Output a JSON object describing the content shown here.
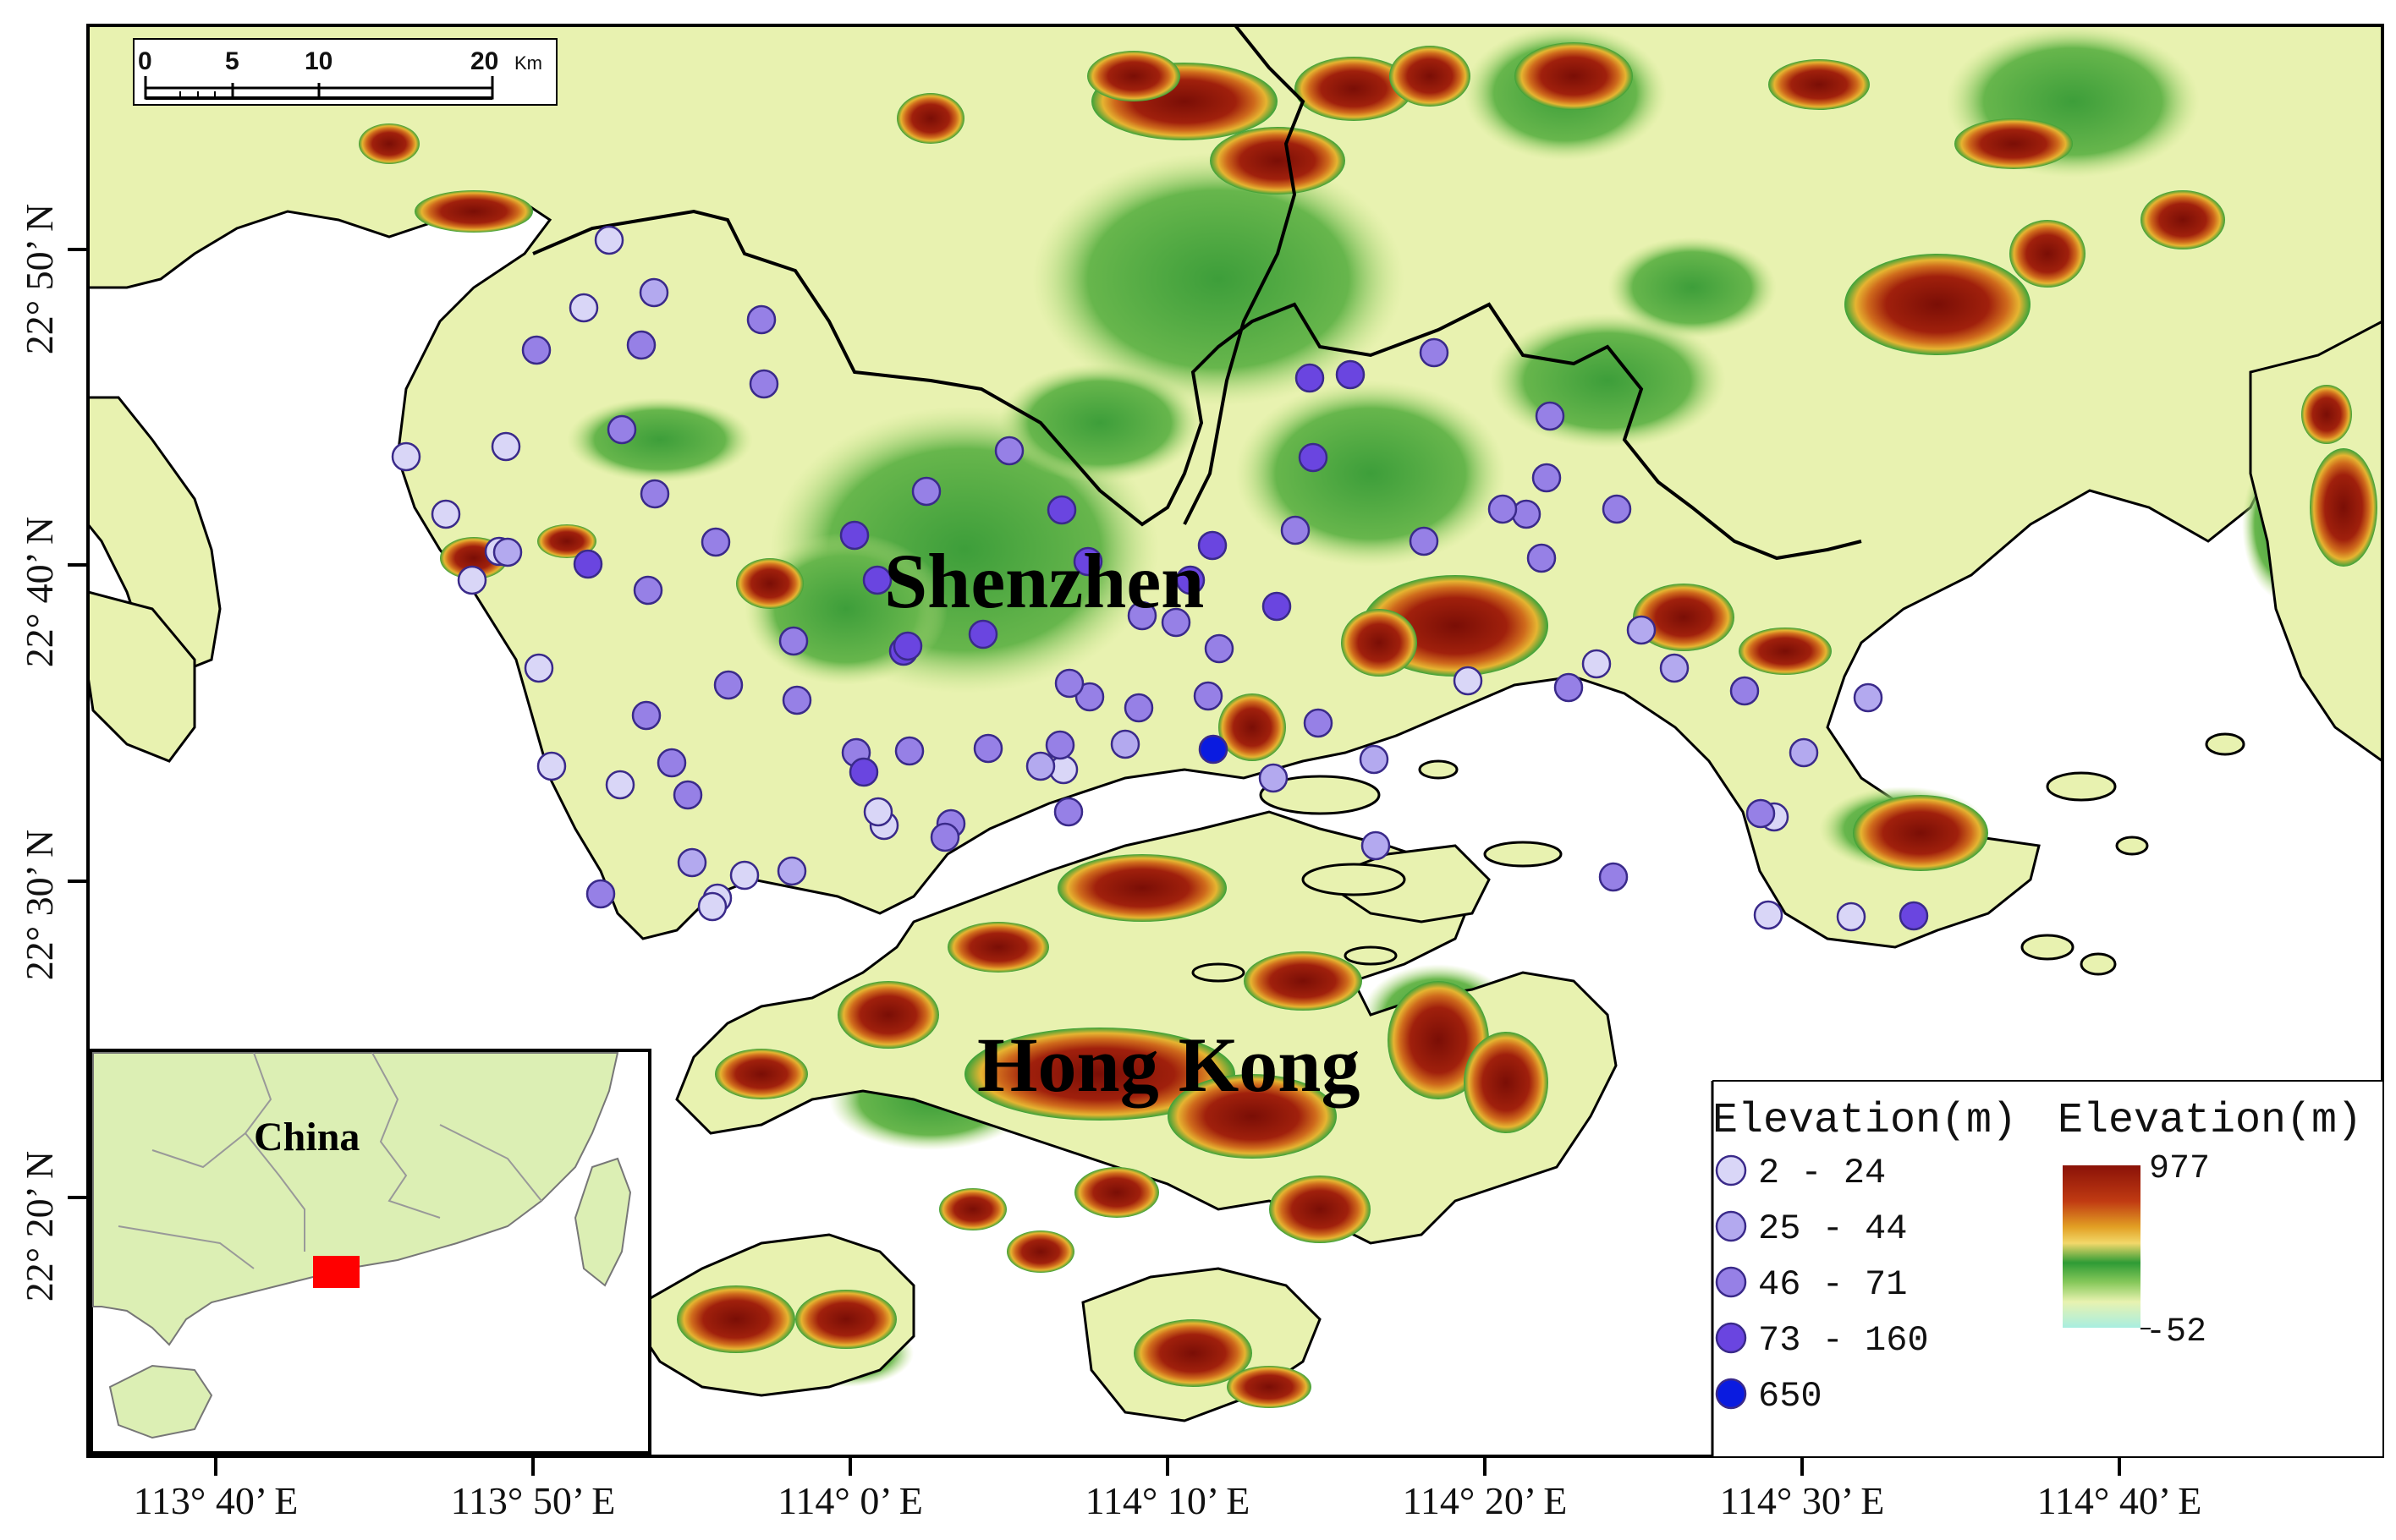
{
  "place_labels": {
    "main_city": "Shenzhen",
    "second_city": "Hong Kong",
    "inset_country": "China"
  },
  "scale_bar": {
    "ticks": [
      "0",
      "5",
      "10",
      "20"
    ],
    "unit": "Km"
  },
  "lon_labels": [
    "113° 40’ E",
    "113° 50’ E",
    "114° 0’ E",
    "114° 10’ E",
    "114° 20’ E",
    "114° 30’ E",
    "114° 40’ E"
  ],
  "lat_labels": [
    "22° 50’ N",
    "22° 40’ N",
    "22° 30’ N",
    "22° 20’ N"
  ],
  "station_legend": {
    "title": "Elevation(m)",
    "classes": [
      {
        "label": "2 - 24",
        "color": "#d9d6f7"
      },
      {
        "label": "25 - 44",
        "color": "#b3a9ef"
      },
      {
        "label": "46 - 71",
        "color": "#9680e6"
      },
      {
        "label": "73 - 160",
        "color": "#6a45e0"
      },
      {
        "label": "650",
        "color": "#0a1be0"
      }
    ]
  },
  "dem_legend": {
    "title": "Elevation(m)",
    "max": "977",
    "min": "-52"
  },
  "colors": {
    "lowland": "#e8f2b0",
    "green": "#2e9b35",
    "high": "#8a1208",
    "sea": "#ffffff",
    "inset_land": "#dcefb4",
    "study_area": "#ff0000"
  },
  "stations": [
    [
      1,
      720,
      284
    ],
    [
      1,
      690,
      364
    ],
    [
      1,
      480,
      540
    ],
    [
      1,
      598,
      528
    ],
    [
      1,
      527,
      608
    ],
    [
      1,
      590,
      652
    ],
    [
      1,
      558,
      686
    ],
    [
      1,
      637,
      790
    ],
    [
      1,
      652,
      906
    ],
    [
      1,
      733,
      928
    ],
    [
      1,
      848,
      1062
    ],
    [
      1,
      842,
      1072
    ],
    [
      1,
      880,
      1035
    ],
    [
      1,
      1045,
      976
    ],
    [
      1,
      1257,
      910
    ],
    [
      1,
      1887,
      785
    ],
    [
      1,
      2097,
      966
    ],
    [
      1,
      2090,
      1082
    ],
    [
      1,
      2188,
      1084
    ],
    [
      1,
      1735,
      805
    ],
    [
      1,
      1038,
      960
    ],
    [
      2,
      773,
      346
    ],
    [
      2,
      600,
      653
    ],
    [
      2,
      818,
      1020
    ],
    [
      2,
      936,
      1030
    ],
    [
      2,
      1230,
      906
    ],
    [
      2,
      1330,
      880
    ],
    [
      2,
      1505,
      920
    ],
    [
      2,
      1624,
      898
    ],
    [
      2,
      2132,
      890
    ],
    [
      2,
      2208,
      825
    ],
    [
      2,
      1979,
      790
    ],
    [
      2,
      1940,
      745
    ],
    [
      2,
      1626,
      1000
    ],
    [
      3,
      634,
      414
    ],
    [
      3,
      758,
      408
    ],
    [
      3,
      900,
      378
    ],
    [
      3,
      735,
      508
    ],
    [
      3,
      903,
      454
    ],
    [
      3,
      774,
      584
    ],
    [
      3,
      1095,
      581
    ],
    [
      3,
      1193,
      533
    ],
    [
      3,
      846,
      641
    ],
    [
      3,
      766,
      698
    ],
    [
      3,
      938,
      758
    ],
    [
      3,
      861,
      810
    ],
    [
      3,
      764,
      846
    ],
    [
      3,
      794,
      902
    ],
    [
      3,
      813,
      940
    ],
    [
      3,
      710,
      1057
    ],
    [
      3,
      942,
      828
    ],
    [
      3,
      1012,
      890
    ],
    [
      3,
      1075,
      888
    ],
    [
      3,
      1168,
      885
    ],
    [
      3,
      1253,
      881
    ],
    [
      3,
      1346,
      837
    ],
    [
      3,
      1288,
      824
    ],
    [
      3,
      1264,
      808
    ],
    [
      3,
      1390,
      736
    ],
    [
      3,
      1441,
      767
    ],
    [
      3,
      1428,
      823
    ],
    [
      3,
      1558,
      855
    ],
    [
      3,
      1531,
      627
    ],
    [
      3,
      1683,
      640
    ],
    [
      3,
      1804,
      608
    ],
    [
      3,
      1822,
      660
    ],
    [
      3,
      1776,
      602
    ],
    [
      3,
      1828,
      565
    ],
    [
      3,
      1695,
      417
    ],
    [
      3,
      1832,
      492
    ],
    [
      3,
      1911,
      602
    ],
    [
      3,
      1854,
      813
    ],
    [
      3,
      2062,
      817
    ],
    [
      3,
      1907,
      1037
    ],
    [
      3,
      2081,
      962
    ],
    [
      3,
      1350,
      728
    ],
    [
      3,
      1263,
      960
    ],
    [
      3,
      1124,
      974
    ],
    [
      3,
      1117,
      990
    ],
    [
      4,
      695,
      667
    ],
    [
      4,
      1010,
      633
    ],
    [
      4,
      1037,
      686
    ],
    [
      4,
      1068,
      770
    ],
    [
      4,
      1162,
      750
    ],
    [
      4,
      1255,
      603
    ],
    [
      4,
      1286,
      664
    ],
    [
      4,
      1433,
      645
    ],
    [
      4,
      1407,
      686
    ],
    [
      4,
      1552,
      541
    ],
    [
      4,
      1548,
      447
    ],
    [
      4,
      1596,
      443
    ],
    [
      4,
      1509,
      717
    ],
    [
      4,
      1073,
      764
    ],
    [
      4,
      1021,
      913
    ],
    [
      4,
      2262,
      1083
    ],
    [
      5,
      1434,
      886
    ]
  ],
  "hills": [
    [
      1400,
      120,
      110,
      46
    ],
    [
      1510,
      190,
      80,
      40
    ],
    [
      1340,
      90,
      55,
      30
    ],
    [
      1860,
      90,
      70,
      40
    ],
    [
      1600,
      105,
      70,
      38
    ],
    [
      1690,
      90,
      48,
      36
    ],
    [
      460,
      170,
      36,
      24
    ],
    [
      560,
      250,
      70,
      25
    ],
    [
      1100,
      140,
      40,
      30
    ],
    [
      2290,
      360,
      110,
      60
    ],
    [
      2420,
      300,
      45,
      40
    ],
    [
      2150,
      100,
      60,
      30
    ],
    [
      2380,
      170,
      70,
      30
    ],
    [
      2580,
      260,
      50,
      35
    ],
    [
      1720,
      740,
      110,
      60
    ],
    [
      1630,
      760,
      45,
      40
    ],
    [
      1990,
      730,
      60,
      40
    ],
    [
      2110,
      770,
      55,
      28
    ],
    [
      2270,
      985,
      80,
      45
    ],
    [
      1480,
      860,
      40,
      40
    ],
    [
      2770,
      600,
      40,
      70
    ],
    [
      2750,
      490,
      30,
      35
    ],
    [
      910,
      690,
      40,
      30
    ],
    [
      670,
      640,
      35,
      20
    ],
    [
      1350,
      1050,
      100,
      40
    ],
    [
      1180,
      1120,
      60,
      30
    ],
    [
      1050,
      1200,
      60,
      40
    ],
    [
      1300,
      1270,
      160,
      55
    ],
    [
      1480,
      1320,
      100,
      50
    ],
    [
      1540,
      1160,
      70,
      35
    ],
    [
      1700,
      1230,
      60,
      70
    ],
    [
      1780,
      1280,
      50,
      60
    ],
    [
      1560,
      1430,
      60,
      40
    ],
    [
      900,
      1270,
      55,
      30
    ],
    [
      870,
      1560,
      70,
      40
    ],
    [
      1000,
      1560,
      60,
      35
    ],
    [
      1410,
      1600,
      70,
      40
    ],
    [
      1500,
      1640,
      50,
      25
    ],
    [
      1320,
      1410,
      50,
      30
    ],
    [
      1230,
      1480,
      40,
      25
    ],
    [
      560,
      660,
      40,
      25
    ],
    [
      1150,
      1430,
      40,
      25
    ]
  ],
  "greens": [
    [
      1140,
      650,
      230,
      170
    ],
    [
      1440,
      330,
      220,
      150
    ],
    [
      1000,
      720,
      120,
      90
    ],
    [
      1620,
      560,
      160,
      110
    ],
    [
      780,
      520,
      110,
      50
    ],
    [
      1900,
      450,
      140,
      80
    ],
    [
      1300,
      500,
      120,
      70
    ],
    [
      1850,
      110,
      120,
      80
    ],
    [
      2450,
      120,
      150,
      90
    ],
    [
      2000,
      340,
      100,
      60
    ],
    [
      1100,
      1300,
      120,
      60
    ],
    [
      1700,
      1200,
      90,
      60
    ],
    [
      1000,
      1600,
      80,
      40
    ],
    [
      2250,
      980,
      100,
      50
    ],
    [
      2700,
      620,
      50,
      90
    ]
  ],
  "islands": [
    [
      1560,
      940,
      70,
      22
    ],
    [
      1600,
      1040,
      60,
      18
    ],
    [
      1800,
      1010,
      45,
      14
    ],
    [
      1440,
      1150,
      30,
      10
    ],
    [
      1620,
      1130,
      30,
      10
    ],
    [
      2420,
      1120,
      30,
      14
    ],
    [
      2460,
      930,
      40,
      16
    ],
    [
      2630,
      880,
      22,
      12
    ],
    [
      1700,
      910,
      22,
      10
    ],
    [
      2520,
      1000,
      18,
      10
    ],
    [
      2480,
      1140,
      20,
      12
    ]
  ]
}
